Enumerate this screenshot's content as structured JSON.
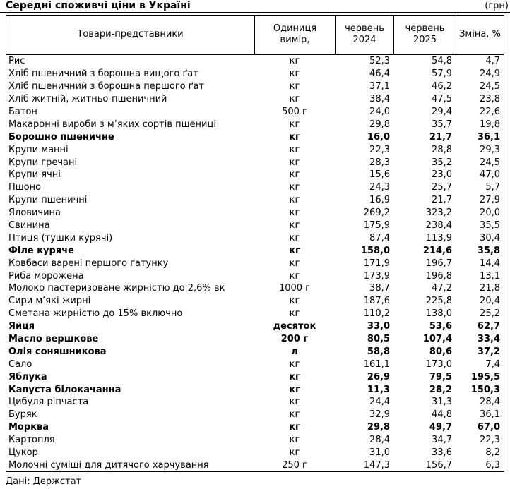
{
  "title": "Середні споживчі ціни в Україні",
  "currency_note": "(грн)",
  "source": "Дані: Держстат",
  "table": {
    "headers": [
      "Товари-представники",
      "Одиниця\nвимір,",
      "червень\n2024",
      "червень\n2025",
      "Зміна, %"
    ],
    "rows": [
      {
        "name": "Рис",
        "unit": "кг",
        "v2024": "52,3",
        "v2025": "54,8",
        "change": "4,7",
        "bold": false
      },
      {
        "name": "Хліб пшеничний з борошна вищого ґат",
        "unit": "кг",
        "v2024": "46,4",
        "v2025": "57,9",
        "change": "24,9",
        "bold": false
      },
      {
        "name": "Хліб пшеничний з борошна першого ґат",
        "unit": "кг",
        "v2024": "37,1",
        "v2025": "46,2",
        "change": "24,5",
        "bold": false
      },
      {
        "name": "Хліб житній, житньо-пшеничний",
        "unit": "кг",
        "v2024": "38,4",
        "v2025": "47,5",
        "change": "23,8",
        "bold": false
      },
      {
        "name": "Батон",
        "unit": "500 г",
        "v2024": "24,0",
        "v2025": "29,4",
        "change": "22,6",
        "bold": false
      },
      {
        "name": "Макаронні вироби з м’яких сортів пшениці",
        "unit": "кг",
        "v2024": "29,8",
        "v2025": "35,7",
        "change": "19,8",
        "bold": false
      },
      {
        "name": "Борошно пшеничне",
        "unit": "кг",
        "v2024": "16,0",
        "v2025": "21,7",
        "change": "36,1",
        "bold": true
      },
      {
        "name": "Крупи манні",
        "unit": "кг",
        "v2024": "22,3",
        "v2025": "28,8",
        "change": "29,3",
        "bold": false
      },
      {
        "name": "Крупи гречані",
        "unit": "кг",
        "v2024": "28,3",
        "v2025": "35,2",
        "change": "24,5",
        "bold": false
      },
      {
        "name": "Крупи ячні",
        "unit": "кг",
        "v2024": "15,6",
        "v2025": "23,0",
        "change": "47,0",
        "bold": false
      },
      {
        "name": "Пшоно",
        "unit": "кг",
        "v2024": "24,3",
        "v2025": "25,7",
        "change": "5,7",
        "bold": false
      },
      {
        "name": "Крупи пшеничні",
        "unit": "кг",
        "v2024": "16,9",
        "v2025": "21,7",
        "change": "27,9",
        "bold": false
      },
      {
        "name": "Яловичина",
        "unit": "кг",
        "v2024": "269,2",
        "v2025": "323,2",
        "change": "20,0",
        "bold": false
      },
      {
        "name": "Свинина",
        "unit": "кг",
        "v2024": "175,9",
        "v2025": "238,4",
        "change": "35,5",
        "bold": false
      },
      {
        "name": "Птиця (тушки курячі)",
        "unit": "кг",
        "v2024": "87,4",
        "v2025": "113,9",
        "change": "30,4",
        "bold": false
      },
      {
        "name": "Філе куряче",
        "unit": "кг",
        "v2024": "158,0",
        "v2025": "214,6",
        "change": "35,8",
        "bold": true
      },
      {
        "name": "Ковбаси варені першого ґатунку",
        "unit": "кг",
        "v2024": "171,9",
        "v2025": "196,7",
        "change": "14,4",
        "bold": false
      },
      {
        "name": "Риба морожена",
        "unit": "кг",
        "v2024": "173,9",
        "v2025": "196,8",
        "change": "13,1",
        "bold": false
      },
      {
        "name": "Молоко пастеризоване жирністю до 2,6% вк",
        "unit": "1000 г",
        "v2024": "38,7",
        "v2025": "47,2",
        "change": "21,8",
        "bold": false
      },
      {
        "name": "Сири м’які жирні",
        "unit": "кг",
        "v2024": "187,6",
        "v2025": "225,8",
        "change": "20,4",
        "bold": false
      },
      {
        "name": "Сметана жирністю до 15% включно",
        "unit": "кг",
        "v2024": "110,2",
        "v2025": "138,0",
        "change": "25,2",
        "bold": false
      },
      {
        "name": "Яйця",
        "unit": "десяток",
        "v2024": "33,0",
        "v2025": "53,6",
        "change": "62,7",
        "bold": true
      },
      {
        "name": "Масло вершкове",
        "unit": "200 г",
        "v2024": "80,5",
        "v2025": "107,4",
        "change": "33,4",
        "bold": true
      },
      {
        "name": "Олія соняшникова",
        "unit": "л",
        "v2024": "58,8",
        "v2025": "80,6",
        "change": "37,2",
        "bold": true
      },
      {
        "name": "Сало",
        "unit": "кг",
        "v2024": "161,1",
        "v2025": "173,0",
        "change": "7,4",
        "bold": false
      },
      {
        "name": "Яблука",
        "unit": "кг",
        "v2024": "26,9",
        "v2025": "79,5",
        "change": "195,5",
        "bold": true
      },
      {
        "name": "Капуста білокачанна",
        "unit": "кг",
        "v2024": "11,3",
        "v2025": "28,2",
        "change": "150,3",
        "bold": true
      },
      {
        "name": "Цибуля ріпчаста",
        "unit": "кг",
        "v2024": "24,4",
        "v2025": "31,3",
        "change": "28,4",
        "bold": false
      },
      {
        "name": "Буряк",
        "unit": "кг",
        "v2024": "32,9",
        "v2025": "44,8",
        "change": "36,1",
        "bold": false
      },
      {
        "name": "Морква",
        "unit": "кг",
        "v2024": "29,8",
        "v2025": "49,7",
        "change": "67,0",
        "bold": true
      },
      {
        "name": "Картопля",
        "unit": "кг",
        "v2024": "28,4",
        "v2025": "34,7",
        "change": "22,3",
        "bold": false
      },
      {
        "name": "Цукор",
        "unit": "кг",
        "v2024": "31,0",
        "v2025": "33,6",
        "change": "8,2",
        "bold": false
      },
      {
        "name": "Молочні суміші для дитячого харчування",
        "unit": "250 г",
        "v2024": "147,3",
        "v2025": "156,7",
        "change": "6,3",
        "bold": false
      }
    ]
  }
}
